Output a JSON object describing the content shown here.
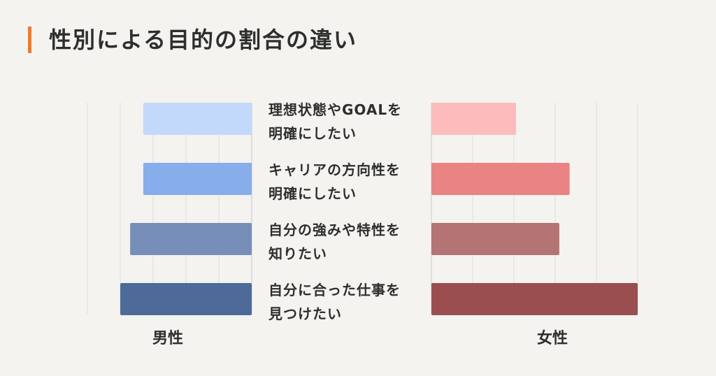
{
  "title": "性別による目的の割合の違い",
  "colors": {
    "accent": "#f07a28",
    "male": [
      "#c3d9fb",
      "#87adeb",
      "#778fb8",
      "#4d6a99"
    ],
    "female": [
      "#fcbcbc",
      "#ea8383",
      "#b57474",
      "#9a4e4f"
    ],
    "grid": "#dcdcdc",
    "axis": "#c8c8c8"
  },
  "chart_data": {
    "type": "bar",
    "orientation": "horizontal",
    "layout": "back-to-back",
    "categories": [
      [
        "理想状態やGOALを",
        "明確にしたい"
      ],
      [
        "キャリアの方向性を",
        "明確にしたい"
      ],
      [
        "自分の強みや特性を",
        "知りたい"
      ],
      [
        "自分に合った仕事を",
        "見つけたい"
      ]
    ],
    "series": [
      {
        "name": "男性",
        "values": [
          3.3,
          3.3,
          3.7,
          4.0
        ]
      },
      {
        "name": "女性",
        "values": [
          2.05,
          3.35,
          3.1,
          5.0
        ]
      }
    ],
    "xlim": [
      0,
      5
    ],
    "grid": true,
    "axis_labels_visible": false
  }
}
